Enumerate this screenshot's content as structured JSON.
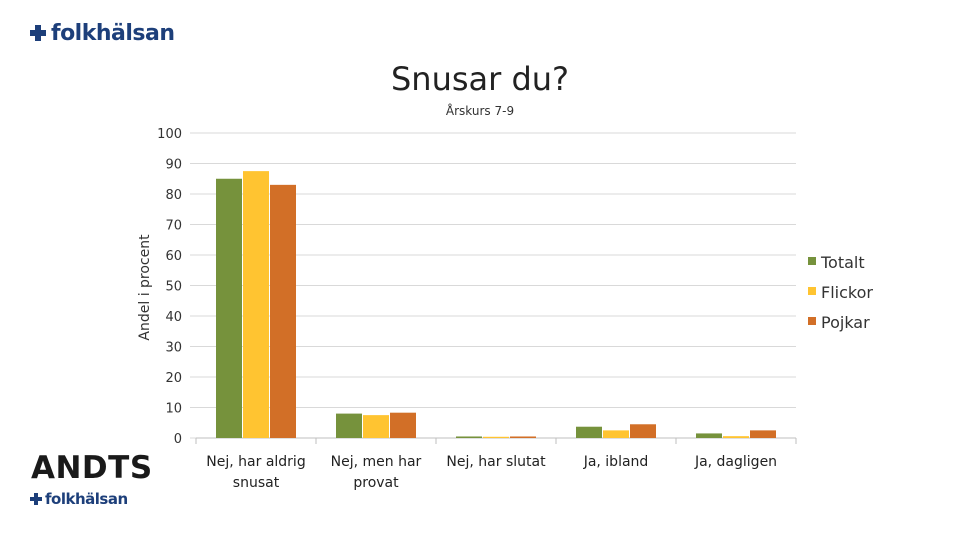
{
  "logo_top": {
    "text": "folkhälsan"
  },
  "logo_bottom": {
    "brand": "ANDTS",
    "text": "folkhälsan"
  },
  "colors": {
    "totalt": "#76923c",
    "flickor": "#ffc431",
    "pojkar": "#d26f27",
    "grid": "#d9d9d9",
    "brand": "#1d3f7a"
  },
  "chart_data": {
    "type": "bar",
    "title": "Snusar du?",
    "subtitle": "Årskurs 7-9",
    "xlabel": "",
    "ylabel": "Andel i procent",
    "ylim": [
      0,
      100
    ],
    "yticks": [
      "0",
      "10",
      "20",
      "30",
      "40",
      "50",
      "60",
      "70",
      "80",
      "90",
      "100"
    ],
    "grid": true,
    "legend_position": "right",
    "categories": [
      [
        "Nej, har aldrig",
        "snusat"
      ],
      [
        "Nej, men har",
        "provat"
      ],
      [
        "Nej, har slutat"
      ],
      [
        "Ja, ibland"
      ],
      [
        "Ja, dagligen"
      ]
    ],
    "series": [
      {
        "name": "Totalt",
        "color": "#76923c",
        "values": [
          85,
          8,
          0.5,
          3.7,
          1.5
        ]
      },
      {
        "name": "Flickor",
        "color": "#ffc431",
        "values": [
          87.5,
          7.5,
          0.4,
          2.5,
          0.6
        ]
      },
      {
        "name": "Pojkar",
        "color": "#d26f27",
        "values": [
          83,
          8.3,
          0.5,
          4.5,
          2.5
        ]
      }
    ]
  }
}
